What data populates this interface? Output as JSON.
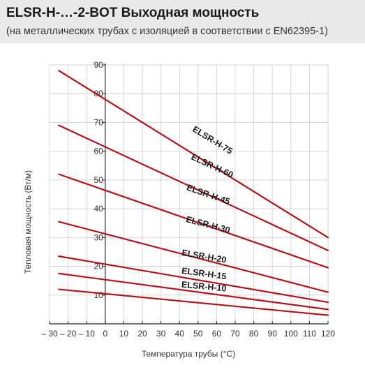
{
  "chart_data": {
    "type": "line",
    "title": "ELSR-H-…-2-BOT Выходная мощность",
    "subtitle": "(на металлических трубах с изоляцией в соответствии с EN62395-1)",
    "xlabel": "Температура трубы (°C)",
    "ylabel": "Тепловая мощность (Вт/м)",
    "xlim": [
      -30,
      120
    ],
    "ylim": [
      0,
      90
    ],
    "x_ticks": [
      "– 30",
      "– 20",
      "– 10",
      "0",
      "10",
      "20",
      "30",
      "40",
      "50",
      "60",
      "70",
      "80",
      "90",
      "100",
      "110",
      "120"
    ],
    "x_tick_values": [
      -30,
      -20,
      -10,
      0,
      10,
      20,
      30,
      40,
      50,
      60,
      70,
      80,
      90,
      100,
      110,
      120
    ],
    "y_ticks": [
      "10",
      "20",
      "30",
      "40",
      "50",
      "60",
      "70",
      "80",
      "90"
    ],
    "y_tick_values": [
      10,
      20,
      30,
      40,
      50,
      60,
      70,
      80,
      90
    ],
    "grid": true,
    "line_color": "#b5121b",
    "series": [
      {
        "name": "ELSR-H-75",
        "x": [
          -25,
          120
        ],
        "y": [
          88,
          30
        ],
        "label_x": 57,
        "label_y": 63
      },
      {
        "name": "ELSR-H-60",
        "x": [
          -25,
          120
        ],
        "y": [
          69,
          25.5
        ],
        "label_x": 57,
        "label_y": 54
      },
      {
        "name": "ELSR-H-45",
        "x": [
          -25,
          120
        ],
        "y": [
          52,
          19.5
        ],
        "label_x": 55,
        "label_y": 44
      },
      {
        "name": "ELSR-H-30",
        "x": [
          -25,
          120
        ],
        "y": [
          35.5,
          11
        ],
        "label_x": 55,
        "label_y": 33.5
      },
      {
        "name": "ELSR-H-20",
        "x": [
          -25,
          120
        ],
        "y": [
          23.5,
          7.5
        ],
        "label_x": 53,
        "label_y": 22.5
      },
      {
        "name": "ELSR-H-15",
        "x": [
          -25,
          120
        ],
        "y": [
          17.5,
          5
        ],
        "label_x": 53,
        "label_y": 16.5
      },
      {
        "name": "ELSR-H-10",
        "x": [
          -25,
          120
        ],
        "y": [
          12,
          3
        ],
        "label_x": 53,
        "label_y": 12
      }
    ]
  }
}
